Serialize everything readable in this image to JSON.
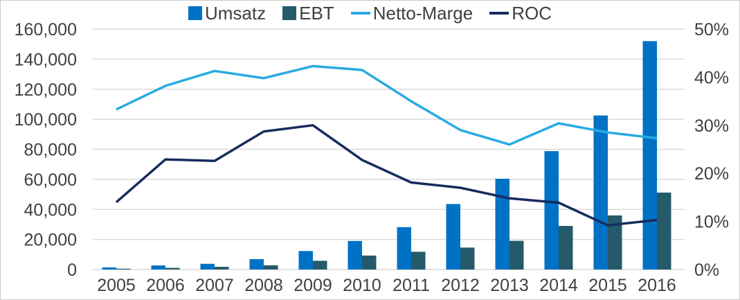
{
  "legend": {
    "items": [
      {
        "label": "Umsatz",
        "marker": "square",
        "color": "#0072C6"
      },
      {
        "label": "EBT",
        "marker": "square",
        "color": "#255A6B"
      },
      {
        "label": "Netto-Marge",
        "marker": "line",
        "color": "#29ABE2"
      },
      {
        "label": "ROC",
        "marker": "line",
        "color": "#172B5E"
      }
    ]
  },
  "chart_data": {
    "type": "combo",
    "categories": [
      "2005",
      "2006",
      "2007",
      "2008",
      "2009",
      "2010",
      "2011",
      "2012",
      "2013",
      "2014",
      "2015",
      "2016"
    ],
    "series": [
      {
        "name": "Umsatz",
        "type": "bar",
        "axis": "left",
        "color": "#0072C6",
        "values": [
          1400,
          2700,
          3800,
          6900,
          12300,
          19000,
          28200,
          43600,
          60400,
          78800,
          102500,
          152000
        ]
      },
      {
        "name": "EBT",
        "type": "bar",
        "axis": "left",
        "color": "#255A6B",
        "values": [
          550,
          1100,
          1800,
          2800,
          5800,
          9300,
          11800,
          14600,
          19100,
          29000,
          36000,
          51200
        ]
      },
      {
        "name": "Netto-Marge",
        "type": "line",
        "axis": "right",
        "color": "#29ABE2",
        "values": [
          33.3,
          38.2,
          41.3,
          39.8,
          42.3,
          41.5,
          35.0,
          29.0,
          26.0,
          30.4,
          28.5,
          27.3
        ]
      },
      {
        "name": "ROC",
        "type": "line",
        "axis": "right",
        "color": "#172B5E",
        "values": [
          14.0,
          22.9,
          22.6,
          28.7,
          30.0,
          22.8,
          18.1,
          17.0,
          14.8,
          13.9,
          9.2,
          10.3
        ]
      }
    ],
    "left_axis": {
      "min": 0,
      "max": 160000,
      "step": 20000,
      "tick_labels": [
        "0",
        "20,000",
        "40,000",
        "60,000",
        "80,000",
        "100,000",
        "120,000",
        "140,000",
        "160,000"
      ]
    },
    "right_axis": {
      "min": 0,
      "max": 50,
      "step": 10,
      "tick_labels": [
        "0%",
        "10%",
        "20%",
        "30%",
        "40%",
        "50%"
      ]
    },
    "grid": true,
    "legend_position": "top",
    "colors": {
      "grid": "#D9D9D9",
      "text": "#404040",
      "border": "#C9C9C9"
    }
  }
}
